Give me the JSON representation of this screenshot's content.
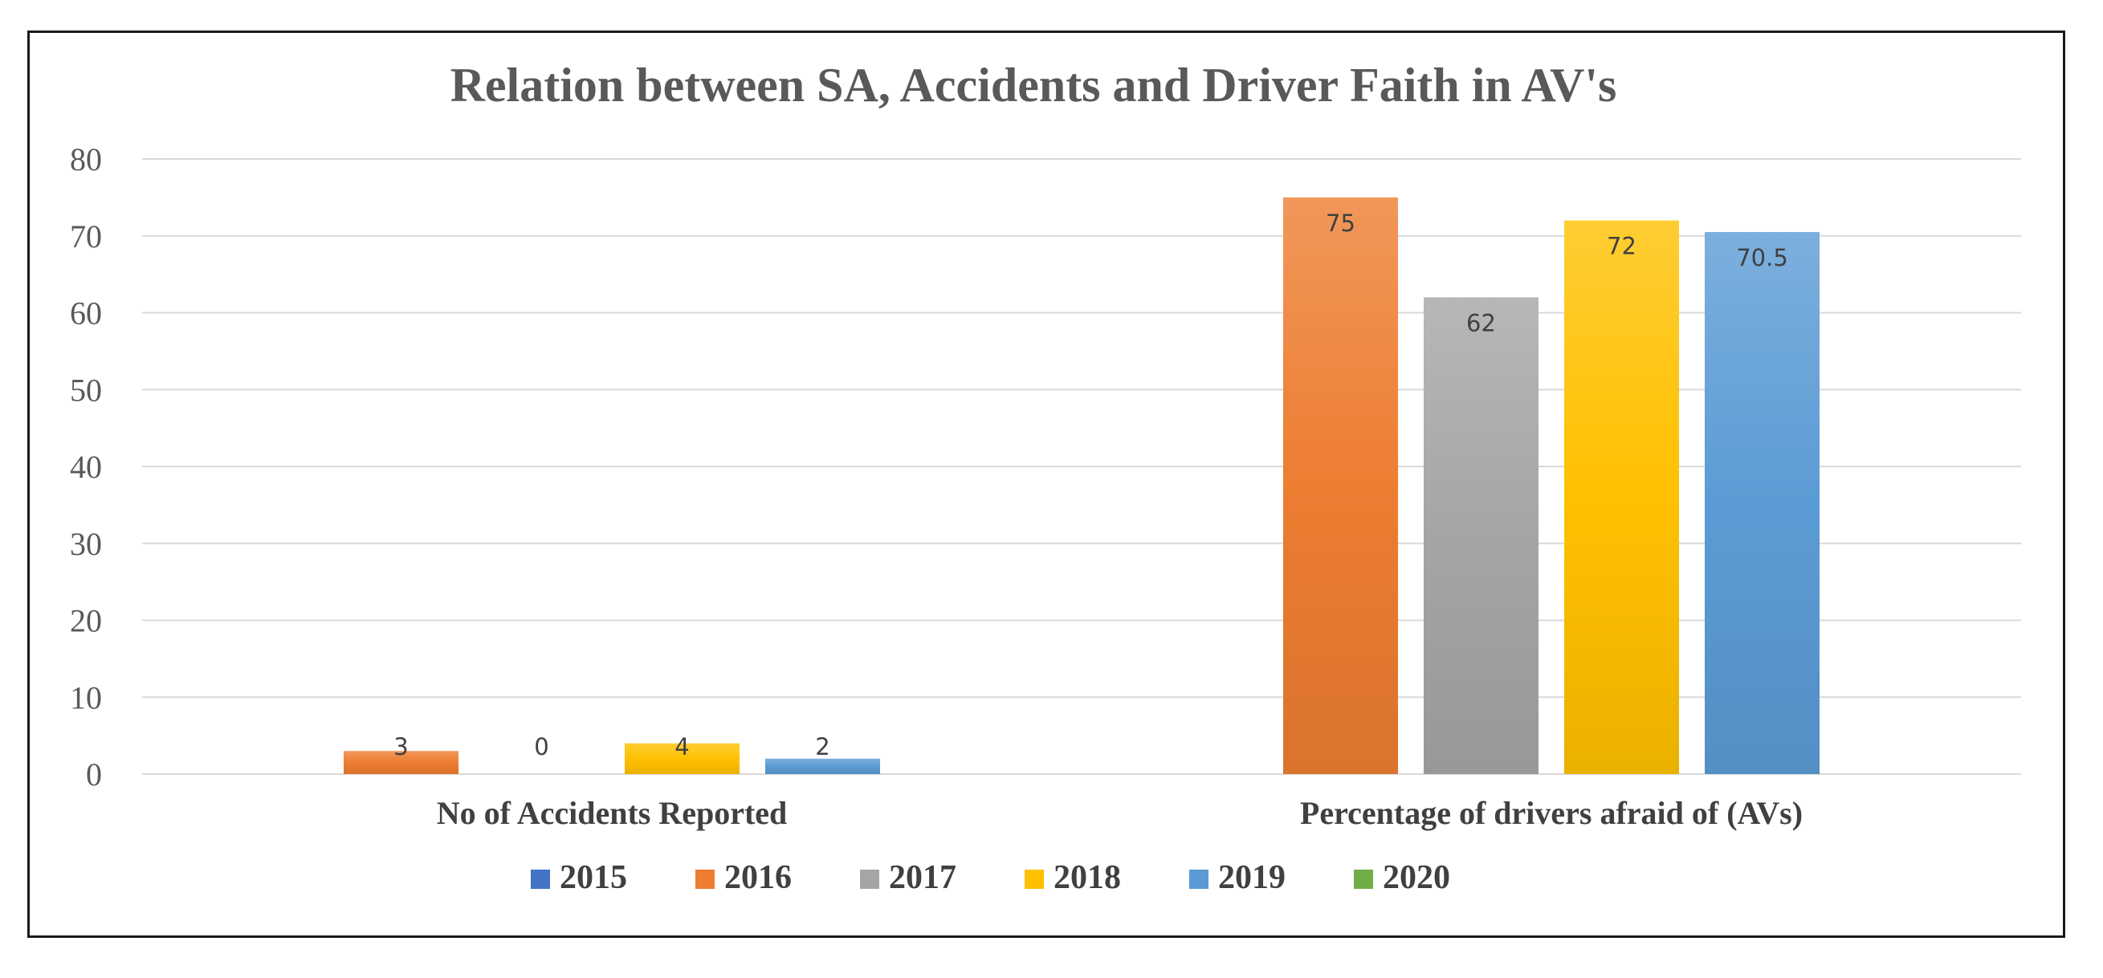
{
  "chart_data": {
    "type": "bar",
    "title": "Relation between SA, Accidents and Driver Faith in AV's",
    "categories": [
      "No of Accidents Reported",
      "Percentage of drivers afraid of (AVs)"
    ],
    "series": [
      {
        "name": "2015",
        "color": "#4472c4",
        "values": [
          null,
          null
        ],
        "labels": [
          null,
          null
        ]
      },
      {
        "name": "2016",
        "color": "#ed7d31",
        "values": [
          3,
          75
        ],
        "labels": [
          "3",
          "75"
        ]
      },
      {
        "name": "2017",
        "color": "#a5a5a5",
        "values": [
          0,
          62
        ],
        "labels": [
          "0",
          "62"
        ]
      },
      {
        "name": "2018",
        "color": "#ffc000",
        "values": [
          4,
          72
        ],
        "labels": [
          "4",
          "72"
        ]
      },
      {
        "name": "2019",
        "color": "#5b9bd5",
        "values": [
          2,
          70.5
        ],
        "labels": [
          "2",
          "70.5"
        ]
      },
      {
        "name": "2020",
        "color": "#70ad47",
        "values": [
          null,
          null
        ],
        "labels": [
          null,
          null
        ]
      }
    ],
    "ylim": [
      0,
      80
    ],
    "yticks": [
      0,
      10,
      20,
      30,
      40,
      50,
      60,
      70,
      80
    ],
    "xlabel": "",
    "ylabel": "",
    "grid": true,
    "legend": "bottom"
  }
}
